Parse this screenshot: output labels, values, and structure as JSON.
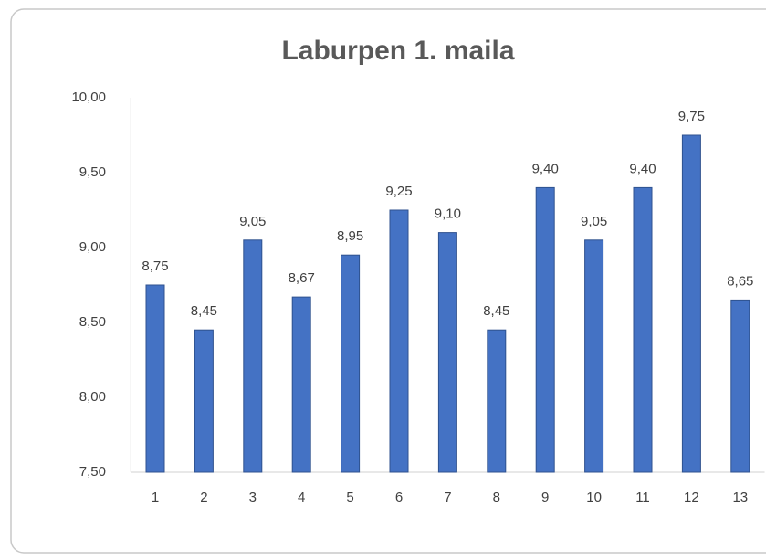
{
  "chart_data": {
    "type": "bar",
    "title": "Laburpen 1. maila",
    "categories": [
      "1",
      "2",
      "3",
      "4",
      "5",
      "6",
      "7",
      "8",
      "9",
      "10",
      "11",
      "12",
      "13"
    ],
    "values": [
      8.75,
      8.45,
      9.05,
      8.67,
      8.95,
      9.25,
      9.1,
      8.45,
      9.4,
      9.05,
      9.4,
      9.75,
      8.65
    ],
    "value_labels": [
      "8,75",
      "8,45",
      "9,05",
      "8,67",
      "8,95",
      "9,25",
      "9,10",
      "8,45",
      "9,40",
      "9,05",
      "9,40",
      "9,75",
      "8,65"
    ],
    "color": "#4472c4",
    "ylim": [
      7.5,
      10
    ],
    "yticks": [
      {
        "value": 7.5,
        "label": "7,50"
      },
      {
        "value": 8,
        "label": "8,00"
      },
      {
        "value": 8.5,
        "label": "8,50"
      },
      {
        "value": 9,
        "label": "9,00"
      },
      {
        "value": 9.5,
        "label": "9,50"
      },
      {
        "value": 10,
        "label": "10,00"
      }
    ],
    "grid": false
  }
}
